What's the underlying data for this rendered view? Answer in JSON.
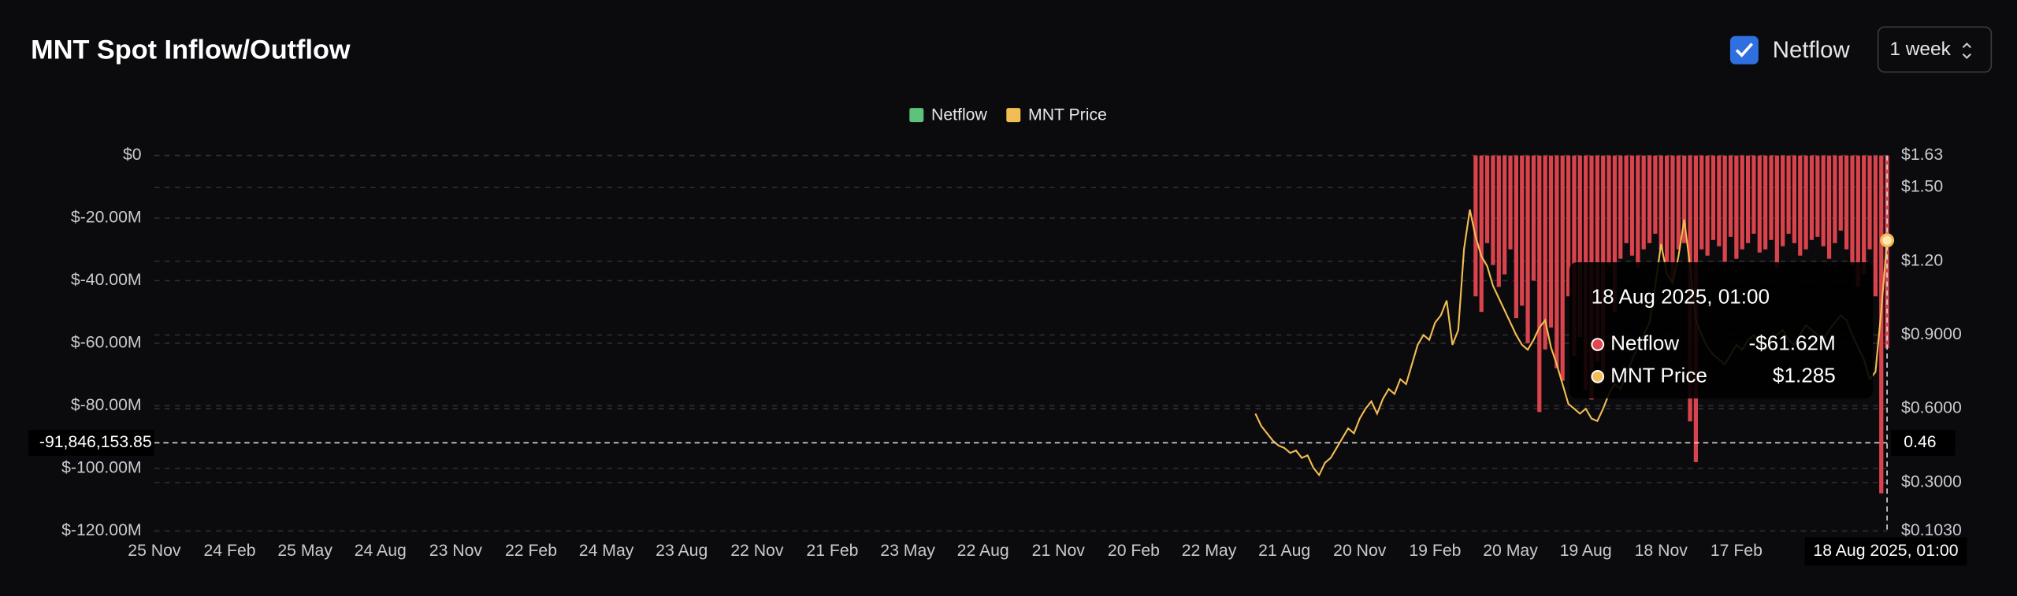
{
  "header": {
    "title": "MNT Spot Inflow/Outflow",
    "toggle_label": "Netflow",
    "period": "1 week"
  },
  "chart_data": {
    "type": "bar",
    "x": [
      190,
      191,
      192,
      193,
      194,
      195,
      196,
      197,
      198,
      199,
      200,
      201,
      202,
      203,
      204,
      205,
      206,
      207,
      208,
      209,
      210,
      211,
      212,
      213,
      214,
      215,
      216,
      217,
      218,
      219,
      220,
      221,
      222,
      223,
      224,
      225,
      226,
      227,
      228,
      229,
      230,
      231,
      232,
      233,
      234,
      235,
      236,
      237,
      238,
      239,
      240,
      241,
      242,
      243,
      244,
      245,
      246,
      247,
      248,
      249,
      250,
      251,
      252,
      253,
      254,
      255,
      256,
      257,
      258,
      259,
      260,
      261,
      262,
      263,
      264,
      265,
      266,
      267,
      268,
      269,
      270,
      271,
      272,
      273,
      274,
      275,
      276,
      277,
      278,
      279,
      280,
      281,
      282,
      283,
      284,
      285,
      286,
      287,
      288,
      289,
      290,
      291,
      292,
      293,
      294,
      295,
      296,
      297,
      298,
      299
    ],
    "xlim": [
      0,
      299
    ],
    "xticks": [
      {
        "value": 0,
        "label": "25 Nov"
      },
      {
        "value": 13,
        "label": "24 Feb"
      },
      {
        "value": 26,
        "label": "25 May"
      },
      {
        "value": 39,
        "label": "24 Aug"
      },
      {
        "value": 52,
        "label": "23 Nov"
      },
      {
        "value": 65,
        "label": "22 Feb"
      },
      {
        "value": 78,
        "label": "24 May"
      },
      {
        "value": 91,
        "label": "23 Aug"
      },
      {
        "value": 104,
        "label": "22 Nov"
      },
      {
        "value": 117,
        "label": "21 Feb"
      },
      {
        "value": 130,
        "label": "23 May"
      },
      {
        "value": 143,
        "label": "22 Aug"
      },
      {
        "value": 156,
        "label": "21 Nov"
      },
      {
        "value": 169,
        "label": "20 Feb"
      },
      {
        "value": 182,
        "label": "22 May"
      },
      {
        "value": 195,
        "label": "21 Aug"
      },
      {
        "value": 208,
        "label": "20 Nov"
      },
      {
        "value": 221,
        "label": "19 Feb"
      },
      {
        "value": 234,
        "label": "20 May"
      },
      {
        "value": 247,
        "label": "19 Aug"
      },
      {
        "value": 260,
        "label": "18 Nov"
      },
      {
        "value": 273,
        "label": "17 Feb"
      }
    ],
    "ylim": [
      -120000000,
      0
    ],
    "yticks": [
      {
        "value": 0,
        "label": "$0"
      },
      {
        "value": -20000000,
        "label": "$-20.00M"
      },
      {
        "value": -40000000,
        "label": "$-40.00M"
      },
      {
        "value": -60000000,
        "label": "$-60.00M"
      },
      {
        "value": -80000000,
        "label": "$-80.00M"
      },
      {
        "value": -100000000,
        "label": "$-100.00M"
      },
      {
        "value": -120000000,
        "label": "$-120.00M"
      }
    ],
    "y2lim": [
      0.103,
      1.63
    ],
    "y2ticks": [
      {
        "value": 1.63,
        "label": "$1.63"
      },
      {
        "value": 1.5,
        "label": "$1.50"
      },
      {
        "value": 1.2,
        "label": "$1.20"
      },
      {
        "value": 0.9,
        "label": "$0.9000"
      },
      {
        "value": 0.6,
        "label": "$0.6000"
      },
      {
        "value": 0.3,
        "label": "$0.3000"
      },
      {
        "value": 0.103,
        "label": "$0.1030"
      }
    ],
    "grid": true,
    "legend": "top",
    "series": [
      {
        "name": "Netflow",
        "type": "bar",
        "color": "#5fc27c",
        "negative_color": "#d9434c",
        "values": [
          null,
          null,
          null,
          null,
          null,
          null,
          null,
          null,
          null,
          null,
          null,
          null,
          null,
          null,
          null,
          null,
          null,
          null,
          null,
          null,
          null,
          null,
          null,
          null,
          null,
          null,
          null,
          null,
          null,
          null,
          null,
          null,
          null,
          null,
          null,
          null,
          null,
          null,
          -45000000,
          -50000000,
          -28000000,
          -35000000,
          -42000000,
          -38000000,
          -30000000,
          -52000000,
          -48000000,
          -60000000,
          -40000000,
          -82000000,
          -62000000,
          -55000000,
          -68000000,
          -72000000,
          -45000000,
          -64000000,
          -58000000,
          -75000000,
          -78000000,
          -66000000,
          -70000000,
          -35000000,
          -50000000,
          -33000000,
          -28000000,
          -32000000,
          -36000000,
          -30000000,
          -28000000,
          -25000000,
          -30000000,
          -34000000,
          -40000000,
          -30000000,
          -28000000,
          -85000000,
          -98000000,
          -30000000,
          -32000000,
          -27000000,
          -29000000,
          -34000000,
          -26000000,
          -33000000,
          -30000000,
          -28000000,
          -25000000,
          -31000000,
          -30000000,
          -27000000,
          -36000000,
          -29000000,
          -25000000,
          -28000000,
          -32000000,
          -30000000,
          -27000000,
          -26000000,
          -29000000,
          -33000000,
          -28000000,
          -24000000,
          -30000000,
          -35000000,
          -42000000,
          -38000000,
          -30000000,
          -45000000,
          -108000000,
          -61620000
        ]
      },
      {
        "name": "MNT Price",
        "type": "line",
        "axis": "y2",
        "color": "#f2bd52",
        "values": [
          0.58,
          0.53,
          0.5,
          0.47,
          0.45,
          0.44,
          0.42,
          0.43,
          0.4,
          0.41,
          0.36,
          0.33,
          0.38,
          0.4,
          0.44,
          0.48,
          0.52,
          0.5,
          0.56,
          0.6,
          0.63,
          0.58,
          0.64,
          0.68,
          0.66,
          0.72,
          0.7,
          0.78,
          0.86,
          0.9,
          0.88,
          0.95,
          0.98,
          1.04,
          0.86,
          0.92,
          1.25,
          1.41,
          1.3,
          1.22,
          1.18,
          1.1,
          1.05,
          1.0,
          0.95,
          0.9,
          0.86,
          0.84,
          0.88,
          0.93,
          0.96,
          0.85,
          0.78,
          0.7,
          0.62,
          0.6,
          0.58,
          0.6,
          0.56,
          0.55,
          0.6,
          0.66,
          0.7,
          0.68,
          0.74,
          0.8,
          0.85,
          0.9,
          0.95,
          1.1,
          1.27,
          1.15,
          1.11,
          1.22,
          1.37,
          1.18,
          0.96,
          0.9,
          0.85,
          0.82,
          0.8,
          0.78,
          0.82,
          0.86,
          0.84,
          0.88,
          0.9,
          0.86,
          0.84,
          0.88,
          0.9,
          0.92,
          0.88,
          0.86,
          0.9,
          0.94,
          0.92,
          0.9,
          0.88,
          0.92,
          0.95,
          0.98,
          0.96,
          0.9,
          0.85,
          0.8,
          0.72,
          0.75,
          1.0,
          1.285
        ]
      }
    ],
    "crosshair": {
      "x": 299,
      "x_label": "18 Aug 2025, 01:00",
      "y": -91846153.85,
      "y_label": "-91,846,153.85",
      "y2": 0.46
    }
  },
  "tooltip": {
    "title": "18 Aug 2025, 01:00",
    "rows": [
      {
        "name": "Netflow",
        "value": "-$61.62M"
      },
      {
        "name": "MNT Price",
        "value": "$1.285"
      }
    ]
  }
}
